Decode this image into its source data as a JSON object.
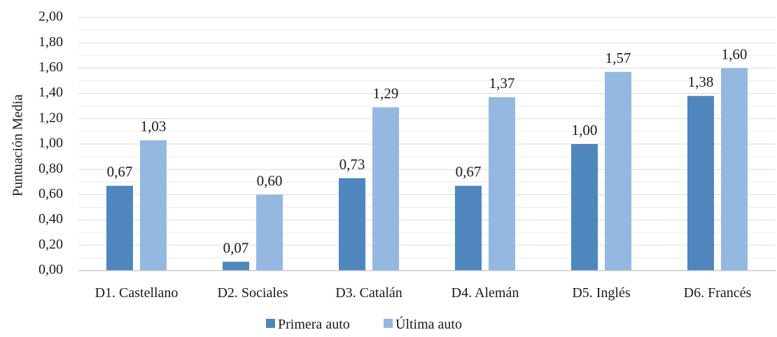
{
  "chart_data": {
    "type": "bar",
    "title": "",
    "xlabel": "",
    "ylabel": "Puntuación Media",
    "ylim": [
      0,
      2
    ],
    "ytick_step": 0.2,
    "yticks": [
      "0,00",
      "0,20",
      "0,40",
      "0,60",
      "0,80",
      "1,00",
      "1,20",
      "1,40",
      "1,60",
      "1,80",
      "2,00"
    ],
    "grid": true,
    "minor_grid": true,
    "legend_position": "bottom",
    "categories": [
      "D1. Castellano",
      "D2. Sociales",
      "D3. Catalán",
      "D4. Alemán",
      "D5. Inglés",
      "D6. Francés"
    ],
    "series": [
      {
        "name": "Primera auto",
        "color": "#4f86bd",
        "values": [
          0.67,
          0.07,
          0.73,
          0.67,
          1.0,
          1.38
        ],
        "labels": [
          "0,67",
          "0,07",
          "0,73",
          "0,67",
          "1,00",
          "1,38"
        ]
      },
      {
        "name": "Última auto",
        "color": "#95b8e0",
        "values": [
          1.03,
          0.6,
          1.29,
          1.37,
          1.57,
          1.6
        ],
        "labels": [
          "1,03",
          "0,60",
          "1,29",
          "1,37",
          "1,57",
          "1,60"
        ]
      }
    ]
  }
}
